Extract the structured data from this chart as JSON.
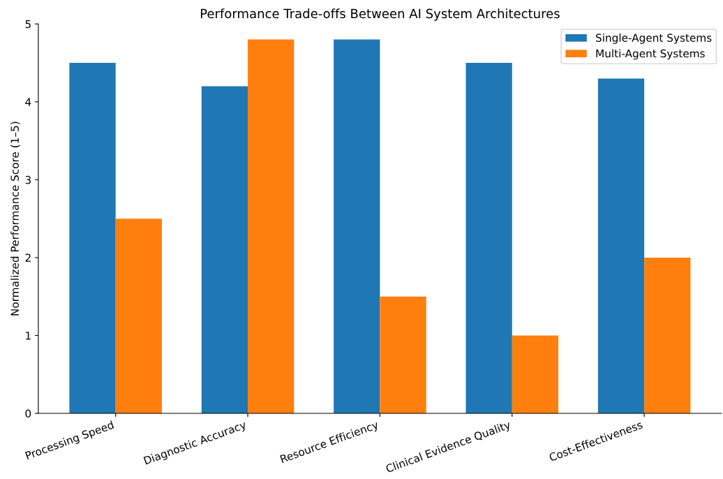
{
  "chart_data": {
    "type": "bar",
    "title": "Performance Trade-offs Between AI System Architectures",
    "ylabel": "Normalized Performance Score (1–5)",
    "categories": [
      "Processing Speed",
      "Diagnostic Accuracy",
      "Resource Efficiency",
      "Clinical Evidence Quality",
      "Cost-Effectiveness"
    ],
    "series": [
      {
        "name": "Single-Agent Systems",
        "color": "#1f77b4",
        "values": [
          4.5,
          4.2,
          4.8,
          4.5,
          4.3
        ]
      },
      {
        "name": "Multi-Agent Systems",
        "color": "#ff7f0e",
        "values": [
          2.5,
          4.8,
          1.5,
          1.0,
          2.0
        ]
      }
    ],
    "ylim": [
      0,
      5
    ],
    "yticks": [
      0,
      1,
      2,
      3,
      4,
      5
    ],
    "grid": false,
    "legend": "top right"
  }
}
